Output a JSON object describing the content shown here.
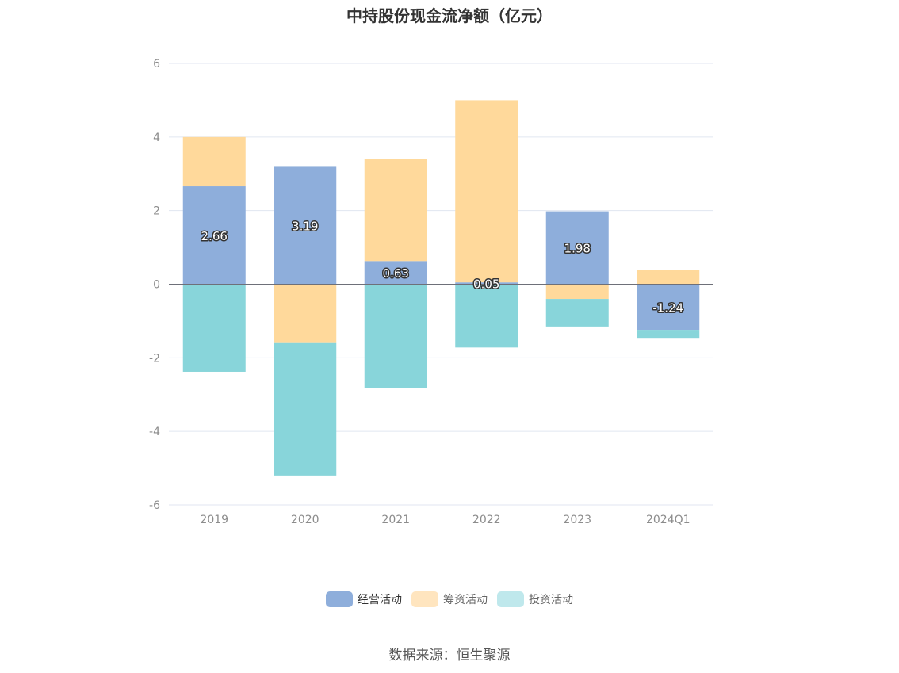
{
  "chart_data": {
    "type": "bar",
    "stacked": true,
    "title": "中持股份现金流净额（亿元）",
    "categories": [
      "2019",
      "2020",
      "2021",
      "2022",
      "2023",
      "2024Q1"
    ],
    "series": [
      {
        "name": "经营活动",
        "color": "#8eaedb",
        "values": [
          2.66,
          3.19,
          0.63,
          0.05,
          1.98,
          -1.24
        ]
      },
      {
        "name": "筹资活动",
        "color": "#ffd99b",
        "values": [
          1.34,
          -1.6,
          2.77,
          4.95,
          -0.4,
          0.38
        ]
      },
      {
        "name": "投资活动",
        "color": "#88d5da",
        "values": [
          -2.38,
          -3.6,
          -2.82,
          -1.72,
          -0.75,
          -0.24
        ]
      }
    ],
    "labeled_series": "经营活动",
    "ylim": [
      -6,
      6
    ],
    "yticks": [
      6,
      4,
      2,
      0,
      -2,
      -4,
      -6
    ],
    "grid": true,
    "legend_position": "bottom"
  },
  "legend_colors": [
    "#8eaedb",
    "#ffe5bf",
    "#bfe8ec"
  ],
  "source": "数据来源：恒生聚源"
}
